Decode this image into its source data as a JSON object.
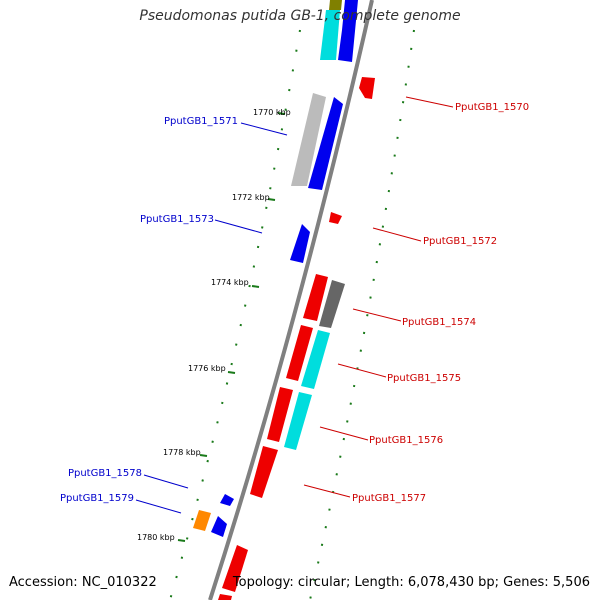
{
  "title": "Pseudomonas putida GB-1, complete genome",
  "footer": {
    "accession": "Accession: NC_010322",
    "summary": "Topology: circular; Length: 6,078,430 bp; Genes: 5,506"
  },
  "colors": {
    "backbone": "#808080",
    "tick": "#1a7a1a",
    "forward_label": "#0000cc",
    "reverse_label": "#cc0000",
    "feature_blue": "#0000ee",
    "feature_red": "#ee0000",
    "feature_cyan": "#00dddd",
    "feature_gray": "#bbbbbb",
    "feature_darkgray": "#666666",
    "feature_orange": "#ff8800"
  },
  "scale": {
    "unit": "kbp",
    "ticks": [
      {
        "kbp": 1770,
        "label": "1770 kbp"
      },
      {
        "kbp": 1772,
        "label": "1772 kbp"
      },
      {
        "kbp": 1774,
        "label": "1774 kbp"
      },
      {
        "kbp": 1776,
        "label": "1776 kbp"
      },
      {
        "kbp": 1778,
        "label": "1778 kbp"
      },
      {
        "kbp": 1780,
        "label": "1780 kbp"
      }
    ]
  },
  "gene_labels": [
    {
      "name": "PputGB1_1570",
      "strand": "reverse"
    },
    {
      "name": "PputGB1_1571",
      "strand": "forward"
    },
    {
      "name": "PputGB1_1572",
      "strand": "reverse"
    },
    {
      "name": "PputGB1_1573",
      "strand": "forward"
    },
    {
      "name": "PputGB1_1574",
      "strand": "reverse"
    },
    {
      "name": "PputGB1_1575",
      "strand": "reverse"
    },
    {
      "name": "PputGB1_1576",
      "strand": "reverse"
    },
    {
      "name": "PputGB1_1577",
      "strand": "reverse"
    },
    {
      "name": "PputGB1_1578",
      "strand": "forward"
    },
    {
      "name": "PputGB1_1579",
      "strand": "forward"
    }
  ]
}
